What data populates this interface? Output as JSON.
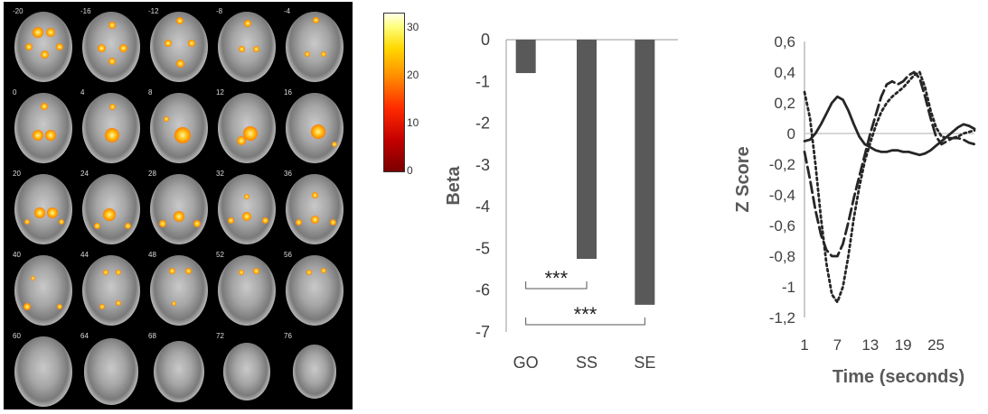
{
  "brain": {
    "slices": [
      "-20",
      "-16",
      "-12",
      "-8",
      "-4",
      "0",
      "4",
      "8",
      "12",
      "16",
      "20",
      "24",
      "28",
      "32",
      "36",
      "40",
      "44",
      "48",
      "52",
      "56",
      "60",
      "64",
      "68",
      "72",
      "76"
    ],
    "colorbar_ticks": [
      "30",
      "20",
      "10",
      "0"
    ],
    "colorbar_max": 33
  },
  "chart_data": [
    {
      "type": "bar",
      "categories": [
        "GO",
        "SS",
        "SE"
      ],
      "values": [
        -0.8,
        -5.25,
        -6.35
      ],
      "ylabel": "Beta",
      "ylim": [
        -7,
        0
      ],
      "yticks": [
        "0",
        "-1",
        "-2",
        "-3",
        "-4",
        "-5",
        "-6",
        "-7"
      ],
      "bar_color": "#595959",
      "significance": [
        {
          "from": "GO",
          "to": "SS",
          "label": "***"
        },
        {
          "from": "GO",
          "to": "SE",
          "label": "***"
        }
      ]
    },
    {
      "type": "line",
      "xlabel": "Time (seconds)",
      "ylabel": "Z Score",
      "ylim": [
        -1.2,
        0.6
      ],
      "xlim": [
        1,
        32
      ],
      "xticks": [
        "1",
        "7",
        "13",
        "19",
        "25"
      ],
      "yticks": [
        "0,6",
        "0,4",
        "0,2",
        "0",
        "-0,2",
        "-0,4",
        "-0,6",
        "-0,8",
        "-1",
        "-1,2"
      ],
      "series": [
        {
          "style": "solid",
          "x": [
            1,
            2,
            3,
            4,
            5,
            6,
            7,
            8,
            9,
            10,
            11,
            12,
            13,
            14,
            15,
            16,
            17,
            18,
            19,
            20,
            21,
            22,
            23,
            24,
            25,
            26,
            27,
            28,
            29,
            30,
            31,
            32
          ],
          "y": [
            -0.05,
            -0.04,
            0.0,
            0.06,
            0.13,
            0.2,
            0.24,
            0.22,
            0.15,
            0.06,
            -0.02,
            -0.07,
            -0.09,
            -0.11,
            -0.12,
            -0.12,
            -0.11,
            -0.11,
            -0.12,
            -0.12,
            -0.13,
            -0.14,
            -0.13,
            -0.11,
            -0.08,
            -0.05,
            -0.02,
            0.01,
            0.04,
            0.06,
            0.05,
            0.03
          ]
        },
        {
          "style": "dashed",
          "x": [
            1,
            2,
            3,
            4,
            5,
            6,
            7,
            8,
            9,
            10,
            11,
            12,
            13,
            14,
            15,
            16,
            17,
            18,
            19,
            20,
            21,
            22,
            23,
            24,
            25,
            26,
            27,
            28,
            29,
            30,
            31,
            32
          ],
          "y": [
            -0.12,
            -0.3,
            -0.5,
            -0.66,
            -0.76,
            -0.8,
            -0.8,
            -0.72,
            -0.58,
            -0.42,
            -0.28,
            -0.14,
            0.0,
            0.12,
            0.24,
            0.32,
            0.34,
            0.32,
            0.34,
            0.38,
            0.4,
            0.36,
            0.24,
            0.1,
            -0.02,
            -0.07,
            -0.05,
            -0.03,
            -0.03,
            -0.04,
            -0.06,
            -0.07
          ]
        },
        {
          "style": "dotted",
          "x": [
            1,
            2,
            3,
            4,
            5,
            6,
            7,
            8,
            9,
            10,
            11,
            12,
            13,
            14,
            15,
            16,
            17,
            18,
            19,
            20,
            21,
            22,
            23,
            24,
            25,
            26,
            27,
            28,
            29,
            30,
            31,
            32
          ],
          "y": [
            0.27,
            0.1,
            -0.2,
            -0.55,
            -0.85,
            -1.05,
            -1.1,
            -1.0,
            -0.8,
            -0.55,
            -0.35,
            -0.18,
            -0.06,
            0.05,
            0.14,
            0.2,
            0.24,
            0.27,
            0.3,
            0.34,
            0.38,
            0.4,
            0.3,
            0.15,
            0.04,
            -0.02,
            -0.03,
            -0.03,
            -0.02,
            0.0,
            0.01,
            0.02
          ]
        }
      ]
    }
  ]
}
